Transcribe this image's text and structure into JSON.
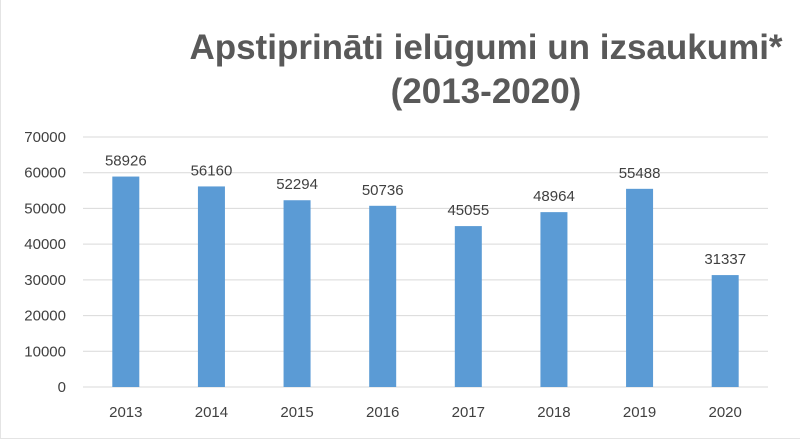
{
  "chart_data": {
    "type": "bar",
    "title": "Apstiprināti ielūgumi un izsaukumi*",
    "subtitle": "(2013-2020)",
    "categories": [
      "2013",
      "2014",
      "2015",
      "2016",
      "2017",
      "2018",
      "2019",
      "2020"
    ],
    "values": [
      58926,
      56160,
      52294,
      50736,
      45055,
      48964,
      55488,
      31337
    ],
    "data_labels": [
      "58926",
      "56160",
      "52294",
      "50736",
      "45055",
      "48964",
      "55488",
      "31337"
    ],
    "ylim": [
      0,
      70000
    ],
    "yticks": [
      0,
      10000,
      20000,
      30000,
      40000,
      50000,
      60000,
      70000
    ],
    "ytick_labels": [
      "0",
      "10000",
      "20000",
      "30000",
      "40000",
      "50000",
      "60000",
      "70000"
    ],
    "xlabel": "",
    "ylabel": "",
    "grid": true,
    "legend": "none",
    "colors": {
      "bar": "#5b9bd5",
      "grid": "#d9d9d9",
      "text": "#404040",
      "title": "#595959"
    }
  }
}
